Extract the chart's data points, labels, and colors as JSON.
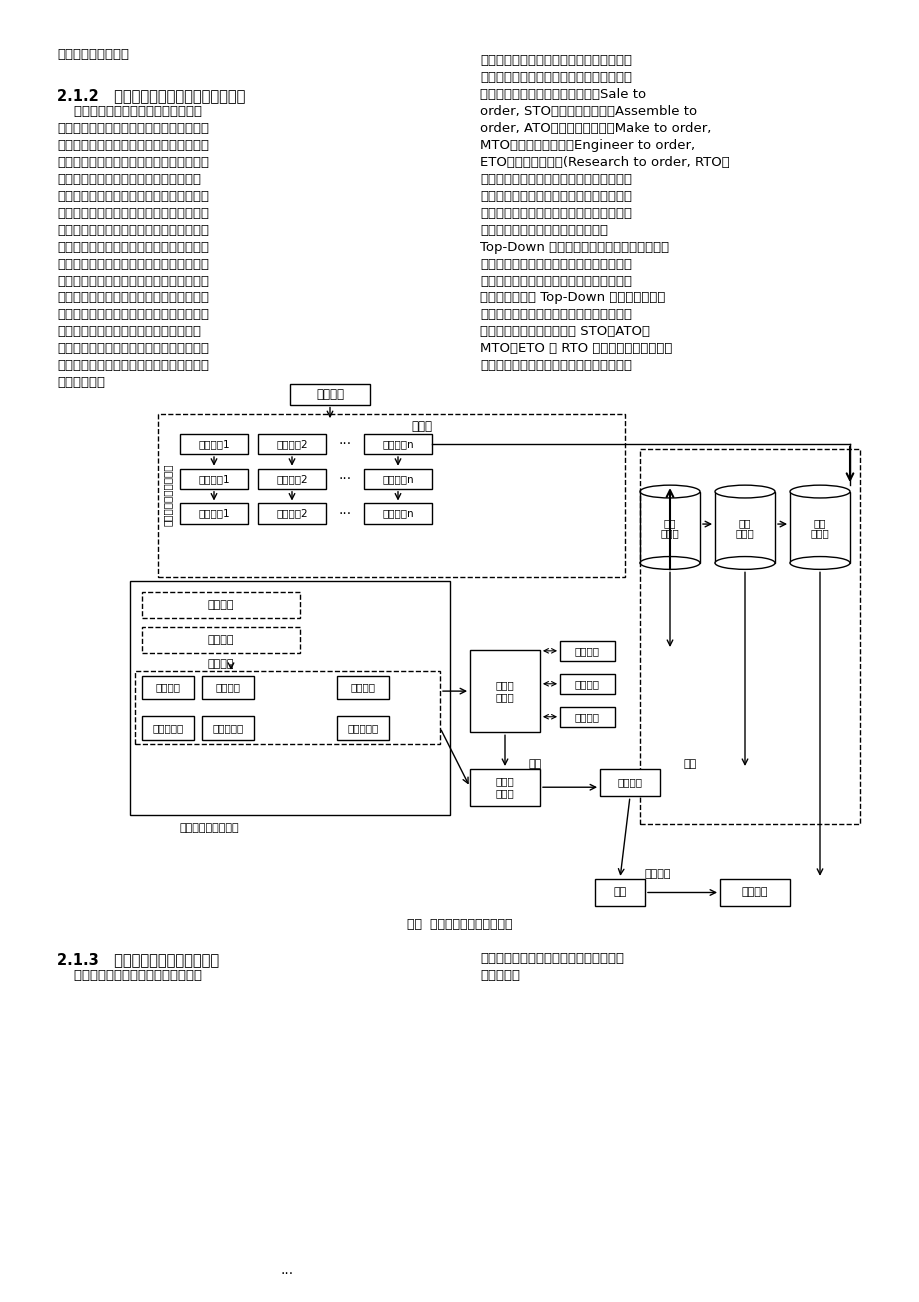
{
  "bg_color": "#ffffff",
  "title": "",
  "left_col_text": [
    [
      "成产品的生长过程。",
      0
    ],
    [
      "2.1.2   产品全生命周期基因工程系统框架",
      1
    ],
    [
      "    生物基因工程能够将基因从生物体内",
      0
    ],
    [
      "提取出来，在体外进行改造，再将重组基因",
      0
    ],
    [
      "导入到受体细胞中，以进行表达。生物系统",
      0
    ],
    [
      "的生长、进化与产品设计存在着相似性，将",
      0
    ],
    [
      "生物的有关遗传规律与产品设计理论有机",
      0
    ],
    [
      "地联系起来，对于机械产品来说，可以借鉴",
      0
    ],
    [
      "生物基因工程原理，提取产品的基因，并加",
      0
    ],
    [
      "以改造，重组出新的产品基因，并使其自动",
      0
    ],
    [
      "生长，生成新的机械产品，用于支持产品的",
      0
    ],
    [
      "创新设计。产品基因工程就是基因工程在机",
      0
    ],
    [
      "械领域的应用，它是提取现有产品基因、建",
      0
    ],
    [
      "立产品基因库、根据用户需求按照一定的法",
      0
    ],
    [
      "则进行基因重组、重组基因评价、在特定环",
      0
    ],
    [
      "境下进行基因表达和最终对新生成产品评",
      0
    ],
    [
      "价的过程，主要用于设计新产品以支持产品",
      0
    ],
    [
      "的创新设计。图１为产品全生命周期基因工",
      0
    ],
    [
      "程系统框架。",
      0
    ]
  ],
  "right_col_text": [
    [
      "度的不同，即客户订单分离点在企业生产过",
      0
    ],
    [
      "程中位置的不同，可以将不同的大批量定制",
      0
    ],
    [
      "的生产方式方式分成按订单销售（Sale to",
      0
    ],
    [
      "order, STO）、按订单装配（Assemble to",
      0
    ],
    [
      "order, ATO）、按订单制造（Make to order,",
      0
    ],
    [
      "MTO）、按订单设计（Engineer to order,",
      0
    ],
    [
      "ETO）和按订单研制(Research to order, RTO）",
      0
    ],
    [
      "五种类型。大批量定制的技术核心是产品及",
      0
    ],
    [
      "零部件的标准化和模块化，而产品基因本身",
      0
    ],
    [
      "就代表着标准功能表面、标准模式、标准零",
      0
    ],
    [
      "部件和标准产品，因此我们可以基于",
      0
    ],
    [
      "Top-Down 的风格将产品基因分为五个层次，",
      0
    ],
    [
      "分别是产品基因、模块基因、零件基因、模",
      0
    ],
    [
      "式基因和功能表面基因，利用产品基因工程",
      0
    ],
    [
      "方法，同样基于 Top-Down 的顺序将它们应",
      0
    ],
    [
      "用于产品的生长型设计之中，并且分别建立",
      0
    ],
    [
      "五个层次的基因库，分别与 STO、ATO、",
      0
    ],
    [
      "MTO、ETO 和 RTO 相对应，以支持不同定",
      0
    ],
    [
      "制深度的产品大规模定制设计。由此可知，",
      0
    ]
  ],
  "bottom_left_text": [
    [
      "2.1.3   产品基因工程与大批量定制",
      1
    ],
    [
      "    根据客户需求对企业生产活动影响程",
      0
    ]
  ],
  "bottom_right_text": [
    [
      "产品基因工程正是实现大批量定制的良好",
      0
    ],
    [
      "解决方案。",
      0
    ]
  ],
  "fig_caption": "图１  产品基因工程的总体框架"
}
